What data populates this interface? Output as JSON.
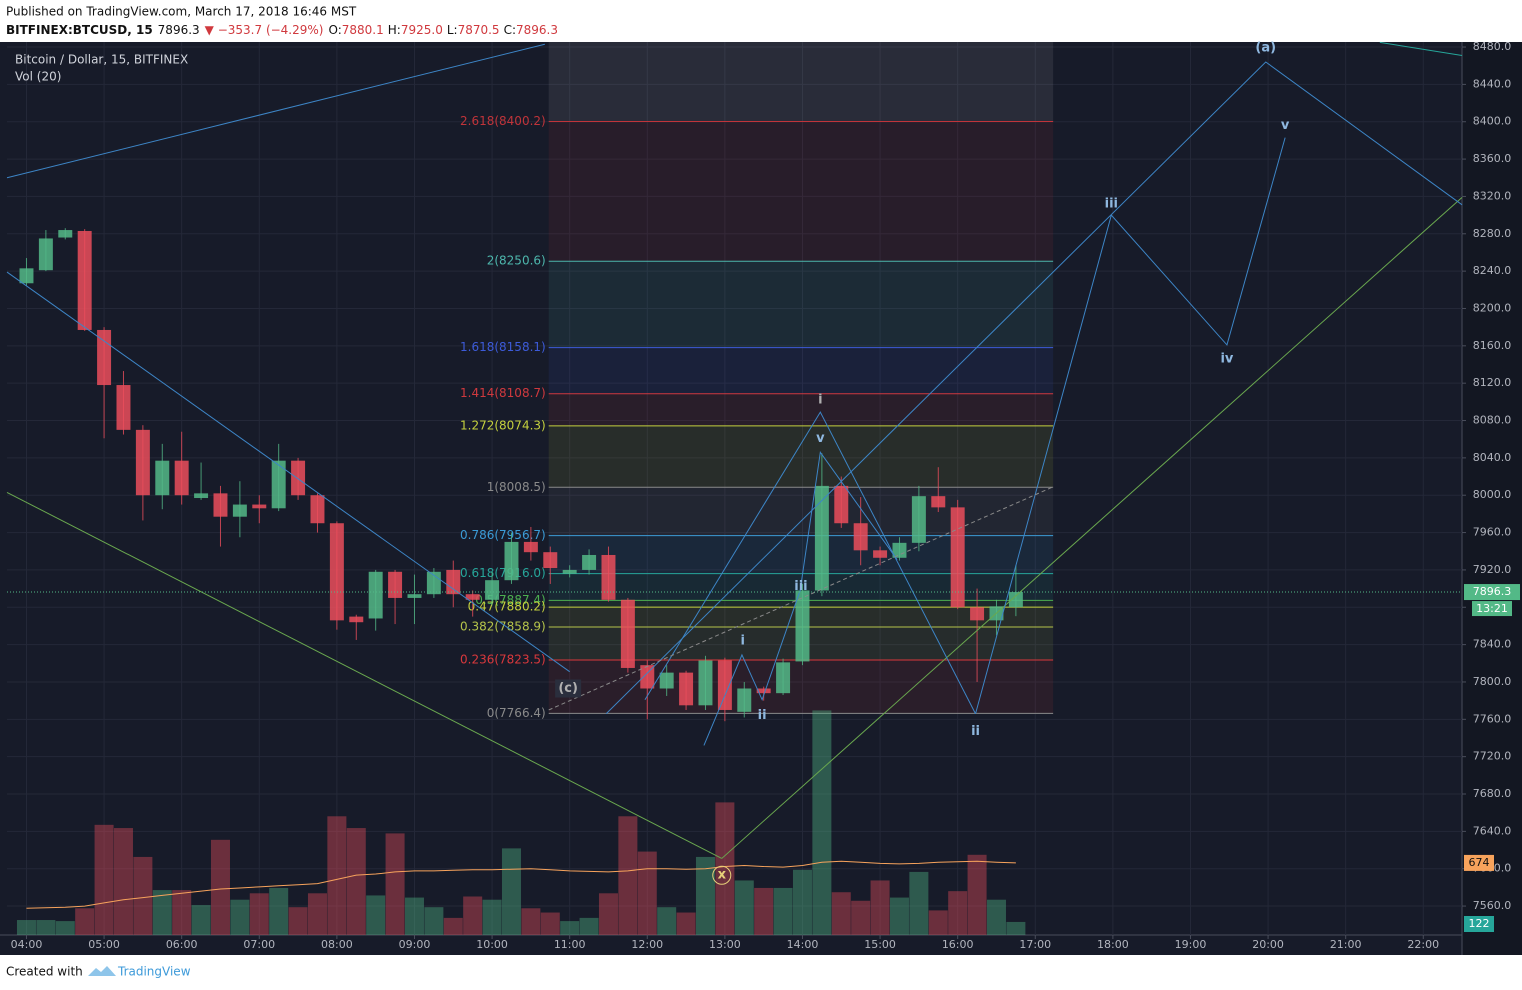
{
  "header": {
    "published": "Published on TradingView.com, March 17, 2018 16:46 MST",
    "symbol": "BITFINEX:BTCUSD, 15",
    "last": "7896.3",
    "change": "▼ −353.7 (−4.29%)",
    "ohlc": [
      {
        "label": "O:",
        "value": "7880.1"
      },
      {
        "label": "H:",
        "value": "7925.0"
      },
      {
        "label": "L:",
        "value": "7870.5"
      },
      {
        "label": "C:",
        "value": "7896.3"
      }
    ]
  },
  "footer": {
    "created": "Created with",
    "brand": "TradingView"
  },
  "chart_data": {
    "type": "candlestick",
    "title": "Bitcoin / Dollar, 15, BITFINEX",
    "up_color": "#53b987",
    "down_color": "#eb4d5c",
    "x": [
      4,
      4.25,
      4.5,
      4.75,
      5,
      5.25,
      5.5,
      5.75,
      6,
      6.25,
      6.5,
      6.75,
      7,
      7.25,
      7.5,
      7.75,
      8,
      8.25,
      8.5,
      8.75,
      9,
      9.25,
      9.5,
      9.75,
      10,
      10.25,
      10.5,
      10.75,
      11,
      11.25,
      11.5,
      11.75,
      12,
      12.25,
      12.5,
      12.75,
      13,
      13.25,
      13.5,
      13.75,
      14,
      14.25,
      14.5,
      14.75,
      15,
      15.25,
      15.5,
      15.75,
      16,
      16.25,
      16.5,
      16.75
    ],
    "open": [
      8227,
      8241,
      8276,
      8283,
      8177,
      8118,
      8070,
      8000,
      8037,
      7997,
      8002,
      7977,
      7990,
      7986,
      8037,
      8000,
      7970,
      7870,
      7868,
      7918,
      7890,
      7894,
      7920,
      7894,
      7888,
      7909,
      7950,
      7939,
      7916,
      7920,
      7936,
      7888,
      7818,
      7793,
      7810,
      7775,
      7823,
      7768,
      7793,
      7788,
      7822,
      7898,
      8010,
      7970,
      7941,
      7933,
      7949,
      7999,
      7987,
      7880,
      7866,
      7880.1
    ],
    "high": [
      8254,
      8284,
      8286,
      8285,
      8180,
      8133,
      8075,
      8055,
      8068,
      8035,
      8010,
      8015,
      8000,
      8055,
      8040,
      8002,
      7972,
      7872,
      7920,
      7920,
      7915,
      7922,
      7930,
      7898,
      7918,
      7960,
      7966,
      7945,
      7925,
      7942,
      7945,
      7890,
      7823,
      7818,
      7812,
      7828,
      7826,
      7800,
      7795,
      7825,
      7905,
      8045,
      8020,
      7998,
      7945,
      7955,
      8010,
      8030,
      7995,
      7900,
      7888,
      7925
    ],
    "low": [
      8224,
      8240,
      8274,
      8176,
      8061,
      8065,
      7973,
      7985,
      7990,
      7995,
      7945,
      7955,
      7970,
      7983,
      7995,
      7960,
      7856,
      7845,
      7855,
      7862,
      7862,
      7890,
      7880,
      7870,
      7882,
      7905,
      7930,
      7905,
      7912,
      7915,
      7886,
      7810,
      7760,
      7785,
      7770,
      7770,
      7758,
      7762,
      7780,
      7786,
      7818,
      7892,
      7965,
      7925,
      7925,
      7930,
      7940,
      7982,
      7878,
      7800,
      7850,
      7870.5
    ],
    "close": [
      8243,
      8275,
      8284,
      8177,
      8118,
      8070,
      8000,
      8037,
      8000,
      8002,
      7977,
      7990,
      7986,
      8037,
      8000,
      7970,
      7866,
      7864,
      7918,
      7890,
      7894,
      7918,
      7894,
      7888,
      7909,
      7950,
      7939,
      7922,
      7920,
      7936,
      7888,
      7815,
      7793,
      7810,
      7775,
      7823,
      7770,
      7793,
      7788,
      7821,
      7898,
      8010,
      7970,
      7941,
      7933,
      7949,
      7999,
      7987,
      7880,
      7866,
      7881,
      7896.3
    ],
    "volume": {
      "name": "Vol (20)",
      "ylim": [
        0,
        8350
      ],
      "ma_color": "#f7a35c",
      "values": [
        140,
        140,
        130,
        250,
        1030,
        1000,
        730,
        420,
        420,
        280,
        890,
        330,
        390,
        440,
        260,
        390,
        1110,
        1000,
        370,
        950,
        350,
        260,
        160,
        360,
        330,
        810,
        250,
        210,
        130,
        160,
        390,
        1110,
        780,
        260,
        210,
        730,
        1240,
        510,
        440,
        440,
        610,
        2100,
        400,
        320,
        510,
        350,
        590,
        230,
        410,
        750,
        330,
        122
      ],
      "ma_values": [
        250,
        255,
        260,
        270,
        300,
        330,
        350,
        370,
        390,
        410,
        430,
        440,
        450,
        460,
        470,
        480,
        520,
        560,
        570,
        590,
        600,
        600,
        605,
        610,
        610,
        615,
        620,
        610,
        600,
        595,
        590,
        600,
        620,
        620,
        615,
        620,
        640,
        650,
        640,
        635,
        650,
        680,
        690,
        680,
        670,
        665,
        670,
        680,
        685,
        690,
        680,
        674
      ]
    },
    "countdown": "13:21",
    "xlim": [
      3.749,
      22.499
    ],
    "ylim": [
      7529,
      8485.4
    ],
    "xticks": [
      {
        "value": 4,
        "label": "04:00"
      },
      {
        "value": 5,
        "label": "05:00"
      },
      {
        "value": 6,
        "label": "06:00"
      },
      {
        "value": 7,
        "label": "07:00"
      },
      {
        "value": 8,
        "label": "08:00"
      },
      {
        "value": 9,
        "label": "09:00"
      },
      {
        "value": 10,
        "label": "10:00"
      },
      {
        "value": 11,
        "label": "11:00"
      },
      {
        "value": 12,
        "label": "12:00"
      },
      {
        "value": 13,
        "label": "13:00"
      },
      {
        "value": 14,
        "label": "14:00"
      },
      {
        "value": 15,
        "label": "15:00"
      },
      {
        "value": 16,
        "label": "16:00"
      },
      {
        "value": 17,
        "label": "17:00"
      },
      {
        "value": 18,
        "label": "18:00"
      },
      {
        "value": 19,
        "label": "19:00"
      },
      {
        "value": 20,
        "label": "20:00"
      },
      {
        "value": 21,
        "label": "21:00"
      },
      {
        "value": 22,
        "label": "22:00"
      }
    ],
    "yticks": [
      {
        "value": 8480,
        "label": "8480.0"
      },
      {
        "value": 8440,
        "label": "8440.0"
      },
      {
        "value": 8400,
        "label": "8400.0"
      },
      {
        "value": 8360,
        "label": "8360.0"
      },
      {
        "value": 8320,
        "label": "8320.0"
      },
      {
        "value": 8280,
        "label": "8280.0"
      },
      {
        "value": 8240,
        "label": "8240.0"
      },
      {
        "value": 8200,
        "label": "8200.0"
      },
      {
        "value": 8160,
        "label": "8160.0"
      },
      {
        "value": 8120,
        "label": "8120.0"
      },
      {
        "value": 8080,
        "label": "8080.0"
      },
      {
        "value": 8040,
        "label": "8040.0"
      },
      {
        "value": 8000,
        "label": "8000.0"
      },
      {
        "value": 7960,
        "label": "7960.0"
      },
      {
        "value": 7920,
        "label": "7920.0"
      },
      {
        "value": 7880,
        "label": "7880.0"
      },
      {
        "value": 7840,
        "label": "7840.0"
      },
      {
        "value": 7800,
        "label": "7800.0"
      },
      {
        "value": 7760,
        "label": "7760.0"
      },
      {
        "value": 7720,
        "label": "7720.0"
      },
      {
        "value": 7680,
        "label": "7680.0"
      },
      {
        "value": 7640,
        "label": "7640.0"
      },
      {
        "value": 7600,
        "label": "7600.0"
      },
      {
        "value": 7560,
        "label": "7560.0"
      }
    ],
    "grid": true,
    "fib": {
      "x_range": [
        10.73,
        17.23
      ],
      "levels": [
        {
          "value": 8400.2,
          "label": "2.618(8400.2)",
          "color": "#c0343a"
        },
        {
          "value": 8250.6,
          "label": "2(8250.6)",
          "color": "#4db6ac"
        },
        {
          "value": 8158.1,
          "label": "1.618(8158.1)",
          "color": "#3d5bd9"
        },
        {
          "value": 8108.7,
          "label": "1.414(8108.7)",
          "color": "#d0393e"
        },
        {
          "value": 8074.3,
          "label": "1.272(8074.3)",
          "color": "#c5d13e"
        },
        {
          "value": 8008.5,
          "label": "1(8008.5)",
          "color": "#8a8a8a"
        },
        {
          "value": 7956.7,
          "label": "0.786(7956.7)",
          "color": "#3b9bd6"
        },
        {
          "value": 7916.0,
          "label": "0.618(7916.0)",
          "color": "#26a69a"
        },
        {
          "value": 7887.4,
          "label": "0.5(7887.4)",
          "color": "#4caf50"
        },
        {
          "value": 7880.2,
          "label": "0.47(7880.2)",
          "color": "#c5d13e"
        },
        {
          "value": 7858.9,
          "label": "0.382(7858.9)",
          "color": "#b5c44a"
        },
        {
          "value": 7823.5,
          "label": "0.236(7823.5)",
          "color": "#d9383c"
        },
        {
          "value": 7766.4,
          "label": "0(7766.4)",
          "color": "#8a8a8a"
        }
      ]
    },
    "drawings": [
      {
        "color": "#3d85c6",
        "x": [
          3.749,
          10.68
        ],
        "y": [
          8340,
          8483
        ]
      },
      {
        "color": "#3d85c6",
        "x": [
          3.749,
          11.0
        ],
        "y": [
          8239,
          7811
        ]
      },
      {
        "color": "#6aa84f",
        "x": [
          3.749,
          12.96
        ],
        "y": [
          8003,
          7611
        ]
      },
      {
        "color": "#6aa84f",
        "x": [
          12.96,
          22.5
        ],
        "y": [
          7611,
          8319
        ]
      },
      {
        "color": "#3d85c6",
        "x": [
          11.47,
          19.97,
          22.5
        ],
        "y": [
          7766,
          8464,
          8311
        ]
      },
      {
        "color": "#3d85c6",
        "x": [
          16.23,
          17.98,
          19.47,
          20.22
        ],
        "y": [
          7766,
          8300,
          8161,
          8383
        ]
      },
      {
        "color": "#3d85c6",
        "x": [
          11.97,
          14.23,
          16.23
        ],
        "y": [
          7781,
          8089,
          7766
        ]
      },
      {
        "color": "#3d85c6",
        "x": [
          12.73,
          13.22,
          13.48,
          13.97,
          14.23,
          15.22
        ],
        "y": [
          7732,
          7829,
          7781,
          7898,
          8046,
          7931
        ]
      },
      {
        "color": "#8a8a8a",
        "x": [
          10.73,
          17.23
        ],
        "y": [
          7770,
          8009
        ],
        "dashed": true
      },
      {
        "color": "#26a69a",
        "x": [
          21.44,
          22.5
        ],
        "y": [
          8485,
          8471
        ]
      }
    ],
    "annotations": [
      {
        "text": "(a)",
        "x": 19.97,
        "y": 8479,
        "color": "#8fb8e0"
      },
      {
        "text": "v",
        "x": 20.22,
        "y": 8396,
        "color": "#8fb8e0"
      },
      {
        "text": "iii",
        "x": 17.98,
        "y": 8312,
        "color": "#8fb8e0"
      },
      {
        "text": "iv",
        "x": 19.47,
        "y": 8146,
        "color": "#8fb8e0"
      },
      {
        "text": "i",
        "x": 14.23,
        "y": 8102,
        "color": "#b0b0b0"
      },
      {
        "text": "v",
        "x": 14.23,
        "y": 8061,
        "color": "#8fb8e0"
      },
      {
        "text": "iii",
        "x": 13.98,
        "y": 7902,
        "color": "#8fb8e0"
      },
      {
        "text": "i",
        "x": 13.23,
        "y": 7844,
        "color": "#8fb8e0"
      },
      {
        "text": "ii",
        "x": 13.48,
        "y": 7764,
        "color": "#8fb8e0"
      },
      {
        "text": "ii",
        "x": 16.23,
        "y": 7747,
        "color": "#8fb8e0"
      },
      {
        "text": "(c)",
        "x": 10.98,
        "y": 7793,
        "color": "#b0b0b0"
      },
      {
        "text": "x",
        "x": 12.96,
        "y": 7593,
        "color": "#e8d27a"
      }
    ]
  }
}
